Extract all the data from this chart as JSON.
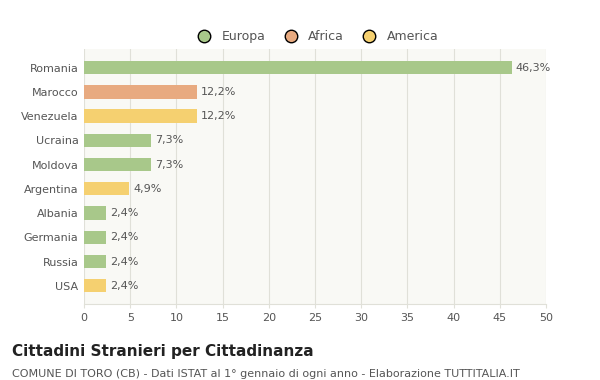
{
  "categories": [
    "Romania",
    "Marocco",
    "Venezuela",
    "Ucraina",
    "Moldova",
    "Argentina",
    "Albania",
    "Germania",
    "Russia",
    "USA"
  ],
  "values": [
    46.3,
    12.2,
    12.2,
    7.3,
    7.3,
    4.9,
    2.4,
    2.4,
    2.4,
    2.4
  ],
  "labels": [
    "46,3%",
    "12,2%",
    "12,2%",
    "7,3%",
    "7,3%",
    "4,9%",
    "2,4%",
    "2,4%",
    "2,4%",
    "2,4%"
  ],
  "continents": [
    "Europa",
    "Africa",
    "America",
    "Europa",
    "Europa",
    "America",
    "Europa",
    "Europa",
    "Europa",
    "America"
  ],
  "colors": {
    "Europa": "#a8c88a",
    "Africa": "#e8aa80",
    "America": "#f5d070"
  },
  "legend_items": [
    "Europa",
    "Africa",
    "America"
  ],
  "xlim": [
    0,
    50
  ],
  "xticks": [
    0,
    5,
    10,
    15,
    20,
    25,
    30,
    35,
    40,
    45,
    50
  ],
  "title": "Cittadini Stranieri per Cittadinanza",
  "subtitle": "COMUNE DI TORO (CB) - Dati ISTAT al 1° gennaio di ogni anno - Elaborazione TUTTITALIA.IT",
  "bg_color": "#ffffff",
  "plot_bg_color": "#f9f9f5",
  "grid_color": "#e0e0d8",
  "bar_height": 0.55,
  "title_fontsize": 11,
  "subtitle_fontsize": 8,
  "label_fontsize": 8,
  "tick_fontsize": 8,
  "legend_fontsize": 9
}
